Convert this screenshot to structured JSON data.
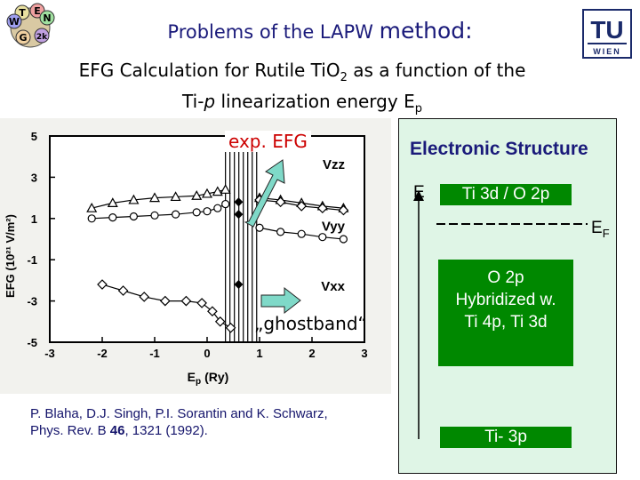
{
  "header": {
    "title_main": "Problems of the LAPW",
    "title_method": "method:",
    "subtitle_line1_a": "EFG Calculation for Rutile TiO",
    "subtitle_line1_sub": "2",
    "subtitle_line1_b": " as a function of the",
    "subtitle_line2_a": "Ti-",
    "subtitle_line2_p": "p",
    "subtitle_line2_b": " linearization energy E",
    "subtitle_line2_sub": "p",
    "logo_right_top": "TU",
    "logo_right_bottom": "WIEN",
    "logo_left_letters": [
      "T",
      "E",
      "W",
      "N",
      "G",
      "2k"
    ]
  },
  "chart_data": {
    "type": "line",
    "xlabel": "E",
    "xlabel_sub": "p",
    "xlabel_unit": "(Ry)",
    "ylabel": "EFG (10²¹ V/m²)",
    "xlim": [
      -3,
      3
    ],
    "ylim": [
      -5,
      5
    ],
    "xticks": [
      "-3",
      "-2",
      "-1",
      "0",
      "1",
      "2",
      "3"
    ],
    "yticks": [
      "5",
      "3",
      "1",
      "-1",
      "-3",
      "-5"
    ],
    "annotation_exp": "exp. EFG",
    "annotation_ghost": "„ghostband“",
    "series": [
      {
        "name": "Vzz",
        "marker": "triangle",
        "x": [
          -2.2,
          -1.8,
          -1.4,
          -1.0,
          -0.6,
          -0.2,
          0.0,
          0.2,
          0.35,
          1.0,
          1.4,
          1.8,
          2.2,
          2.6
        ],
        "y": [
          1.5,
          1.75,
          1.9,
          2.0,
          2.05,
          2.1,
          2.2,
          2.3,
          2.4,
          2.0,
          1.9,
          1.75,
          1.6,
          1.5
        ]
      },
      {
        "name": "Vyy",
        "marker": "circle",
        "x": [
          -2.2,
          -1.8,
          -1.4,
          -1.0,
          -0.6,
          -0.2,
          0.0,
          0.2,
          0.35,
          1.0,
          1.4,
          1.8,
          2.2,
          2.6
        ],
        "y": [
          1.0,
          1.05,
          1.1,
          1.15,
          1.2,
          1.3,
          1.35,
          1.5,
          1.7,
          0.55,
          0.35,
          0.25,
          0.1,
          0.0
        ]
      },
      {
        "name": "Vxx",
        "marker": "diamond",
        "x": [
          -2.0,
          -1.6,
          -1.2,
          -0.8,
          -0.4,
          -0.1,
          0.1,
          0.25,
          0.45,
          1.0,
          1.4,
          1.8,
          2.2,
          2.6
        ],
        "y": [
          -2.2,
          -2.5,
          -2.8,
          -3.0,
          -3.0,
          -3.1,
          -3.5,
          -4.0,
          -4.3,
          1.9,
          1.8,
          1.6,
          1.5,
          1.4
        ]
      }
    ],
    "exp_points": [
      {
        "x": 0.6,
        "y": 1.8
      },
      {
        "x": 0.6,
        "y": 1.2
      },
      {
        "x": 0.6,
        "y": -2.2
      }
    ]
  },
  "electronic": {
    "title": "Electronic Structure",
    "axis_label": "E",
    "level_top": "Ti 3d / O 2p",
    "fermi_label": "E",
    "fermi_sub": "F",
    "level_mid_1": "O 2p",
    "level_mid_2": "Hybridized w.",
    "level_mid_3": "Ti 4p, Ti 3d",
    "level_bottom": "Ti- 3p"
  },
  "citation": {
    "line1": "P. Blaha, D.J. Singh, P.I. Sorantin and K. Schwarz,",
    "line2_a": "Phys. Rev. B ",
    "line2_vol": "46",
    "line2_b": ", 1321 (1992)."
  },
  "colors": {
    "title": "#1a1a7a",
    "green_box": "#008800",
    "panel_bg": "#dff5e6",
    "arrow_fill": "#7fd9c8"
  }
}
